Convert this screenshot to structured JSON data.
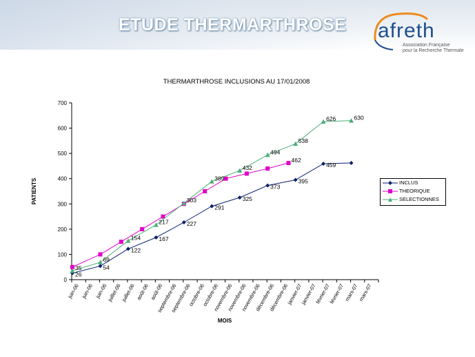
{
  "header": {
    "banner_title": "ETUDE THERMARTHROSE",
    "logo_word": "afreth",
    "logo_sub_1": "Association Française",
    "logo_sub_2": "pour la Recherche Thermale"
  },
  "chart_data": {
    "type": "line",
    "title": "THERMARTHROSE INCLUSIONS  AU 17/01/2008",
    "xlabel": "MOIS",
    "ylabel": "PATIENTS",
    "ylim": [
      0,
      700
    ],
    "yticks": [
      0,
      100,
      200,
      300,
      400,
      500,
      600,
      700
    ],
    "grid": false,
    "legend_position": "right",
    "categories": [
      "juin-06",
      "juin-06",
      "juin-06",
      "juillet-06",
      "juillet-06",
      "août-06",
      "août-06",
      "septembre-06",
      "septembre-06",
      "octobre-06",
      "octobre-06",
      "novembre-06",
      "novembre-06",
      "novembre-06",
      "décembre-06",
      "décembre-06",
      "janvier-07",
      "janvier-07",
      "février-07",
      "février-07",
      "mars-07",
      "mars-07"
    ],
    "tick_labels": [
      "juin-06",
      "juin-06",
      "juin-06",
      "juillet-06",
      "juillet-06",
      "août-06",
      "août-06",
      "septembre-06",
      "septembre-06",
      "octobre-06",
      "octobre-06",
      "novembre-06",
      "novembre-06",
      "novembre-06",
      "décembre-06",
      "décembre-06",
      "janvier-07",
      "janvier-07",
      "février-07",
      "février-07",
      "mars-07",
      "mars-07"
    ],
    "series": [
      {
        "name": "INCLUS",
        "color": "#0b1f6b",
        "marker": "diamond",
        "points": [
          [
            0,
            26
          ],
          [
            2,
            54
          ],
          [
            4,
            122
          ],
          [
            6,
            167
          ],
          [
            8,
            227
          ],
          [
            10,
            291
          ],
          [
            12,
            325
          ],
          [
            14,
            373
          ],
          [
            16,
            395
          ],
          [
            18,
            459
          ],
          [
            20,
            462
          ]
        ],
        "labels": [
          "26",
          "54",
          "122",
          "167",
          "227",
          "291",
          "325",
          "373",
          "395",
          "459",
          ""
        ]
      },
      {
        "name": "THEORIQUE",
        "color": "#e000c8",
        "marker": "square",
        "points": [
          [
            0,
            50
          ],
          [
            2,
            100
          ],
          [
            3.5,
            150
          ],
          [
            5,
            200
          ],
          [
            6.5,
            250
          ],
          [
            8,
            300
          ],
          [
            9.5,
            350
          ],
          [
            11,
            400
          ],
          [
            12.5,
            420
          ],
          [
            14,
            440
          ],
          [
            15.5,
            462
          ]
        ],
        "labels": [
          "",
          "",
          "",
          "",
          "",
          "",
          "",
          "",
          "",
          "",
          "462"
        ]
      },
      {
        "name": "SELECTIONNES",
        "color": "#4cae7a",
        "marker": "triangle",
        "points": [
          [
            0,
            35
          ],
          [
            2,
            69
          ],
          [
            4,
            154
          ],
          [
            6,
            217
          ],
          [
            8,
            303
          ],
          [
            10,
            389
          ],
          [
            12,
            432
          ],
          [
            14,
            494
          ],
          [
            16,
            538
          ],
          [
            18,
            626
          ],
          [
            20,
            630
          ]
        ],
        "labels": [
          "35",
          "69",
          "154",
          "217",
          "303",
          "389",
          "432",
          "494",
          "538",
          "626",
          "630"
        ]
      }
    ]
  }
}
